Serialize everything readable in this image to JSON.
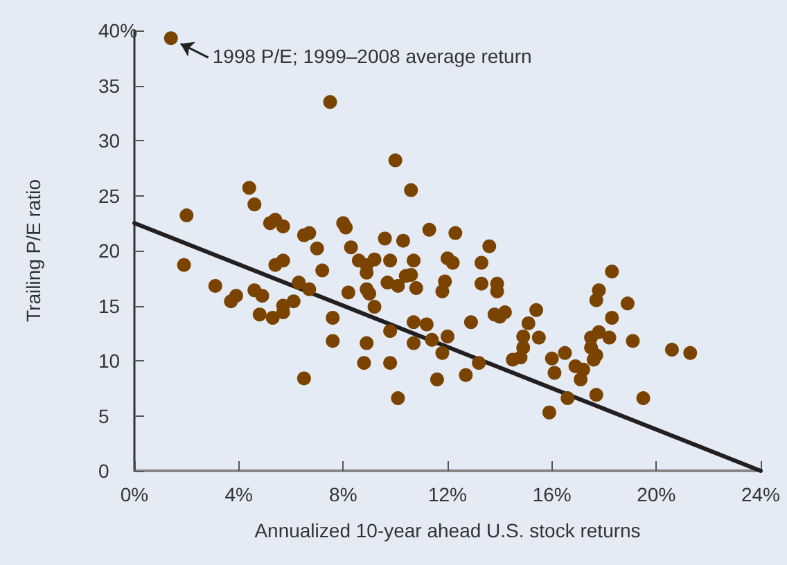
{
  "chart_data": {
    "type": "scatter",
    "xlabel": "Annualized 10-year ahead U.S. stock returns",
    "ylabel": "Trailing P/E ratio",
    "annotations": [
      {
        "text": "1998 P/E; 1999–2008 average return",
        "x": 1.4,
        "y": 39.3
      }
    ],
    "xlim": [
      0,
      24
    ],
    "xticks": [
      {
        "value": 0,
        "label": "0%"
      },
      {
        "value": 4,
        "label": "4%"
      },
      {
        "value": 8,
        "label": "8%"
      },
      {
        "value": 12,
        "label": "12%"
      },
      {
        "value": 16,
        "label": "16%"
      },
      {
        "value": 20,
        "label": "20%"
      },
      {
        "value": 24,
        "label": "24%"
      }
    ],
    "ylim": [
      0,
      40
    ],
    "yticks": [
      0,
      5,
      10,
      15,
      20,
      25,
      30,
      35,
      {
        "value": 40,
        "label": "40%"
      }
    ],
    "grid": false,
    "marker": "circle",
    "series": [
      {
        "color": "#7b4300",
        "x": [
          1.4,
          7.5,
          2.0,
          1.9,
          3.1,
          3.7,
          3.9,
          4.6,
          4.9,
          4.8,
          5.3,
          5.4,
          5.7,
          5.7,
          5.7,
          6.1,
          6.3,
          6.7,
          6.5,
          6.5,
          7.0,
          7.2,
          7.6,
          7.6,
          8.2,
          8.3,
          8.6,
          8.9,
          8.9,
          9.2,
          8.9,
          9.0,
          9.2,
          9.8,
          9.6,
          10.3,
          9.7,
          10.1,
          10.4,
          10.6,
          10.7,
          10.8,
          9.8,
          10.7,
          11.2,
          8.9,
          8.8,
          9.8,
          10.7,
          10.1,
          11.4,
          12.0,
          11.8,
          11.6,
          12.0,
          12.2,
          11.9,
          11.8,
          4.4,
          4.6,
          5.2,
          5.4,
          5.7,
          6.7,
          8.0,
          8.1,
          10.0,
          10.6,
          11.3,
          12.3,
          13.6,
          13.3,
          13.3,
          13.9,
          13.9,
          12.9,
          13.2,
          12.7,
          13.8,
          14.0,
          14.2,
          15.4,
          15.1,
          14.9,
          15.5,
          14.9,
          14.8,
          14.5,
          16.0,
          16.1,
          16.5,
          15.9,
          16.6,
          16.9,
          17.2,
          17.1,
          17.7,
          17.6,
          17.7,
          17.5,
          17.5,
          17.8,
          18.2,
          17.7,
          17.8,
          18.3,
          18.9,
          18.3,
          19.1,
          19.5,
          20.6,
          21.3
        ],
        "values": [
          39.3,
          33.5,
          23.2,
          18.7,
          16.8,
          15.4,
          15.9,
          16.4,
          15.9,
          14.2,
          13.9,
          18.7,
          19.1,
          15.0,
          14.4,
          15.4,
          17.1,
          16.5,
          8.4,
          21.4,
          20.2,
          18.2,
          13.9,
          11.8,
          16.2,
          20.3,
          19.1,
          18.7,
          18.0,
          19.2,
          16.5,
          16.1,
          14.9,
          19.1,
          21.1,
          20.9,
          17.1,
          16.8,
          17.7,
          17.8,
          19.1,
          16.6,
          12.7,
          13.5,
          13.3,
          11.6,
          9.8,
          9.8,
          11.6,
          6.6,
          11.9,
          12.2,
          10.7,
          8.3,
          19.3,
          18.9,
          17.2,
          16.3,
          25.7,
          24.2,
          22.5,
          22.8,
          22.2,
          21.6,
          22.5,
          22.1,
          28.2,
          25.5,
          21.9,
          21.6,
          20.4,
          18.9,
          17.0,
          17.0,
          16.3,
          13.5,
          9.8,
          8.7,
          14.2,
          14.0,
          14.4,
          14.6,
          13.4,
          12.2,
          12.1,
          11.2,
          10.3,
          10.1,
          10.2,
          8.9,
          10.7,
          5.3,
          6.6,
          9.5,
          9.2,
          8.3,
          6.9,
          10.1,
          10.5,
          11.2,
          12.1,
          12.6,
          12.1,
          15.5,
          16.4,
          18.1,
          15.2,
          13.9,
          11.8,
          6.6,
          11.0,
          10.7
        ]
      },
      {
        "type": "line",
        "color": "#231f20",
        "x": [
          0,
          24
        ],
        "values": [
          22.5,
          0
        ],
        "marker": "none"
      }
    ]
  }
}
